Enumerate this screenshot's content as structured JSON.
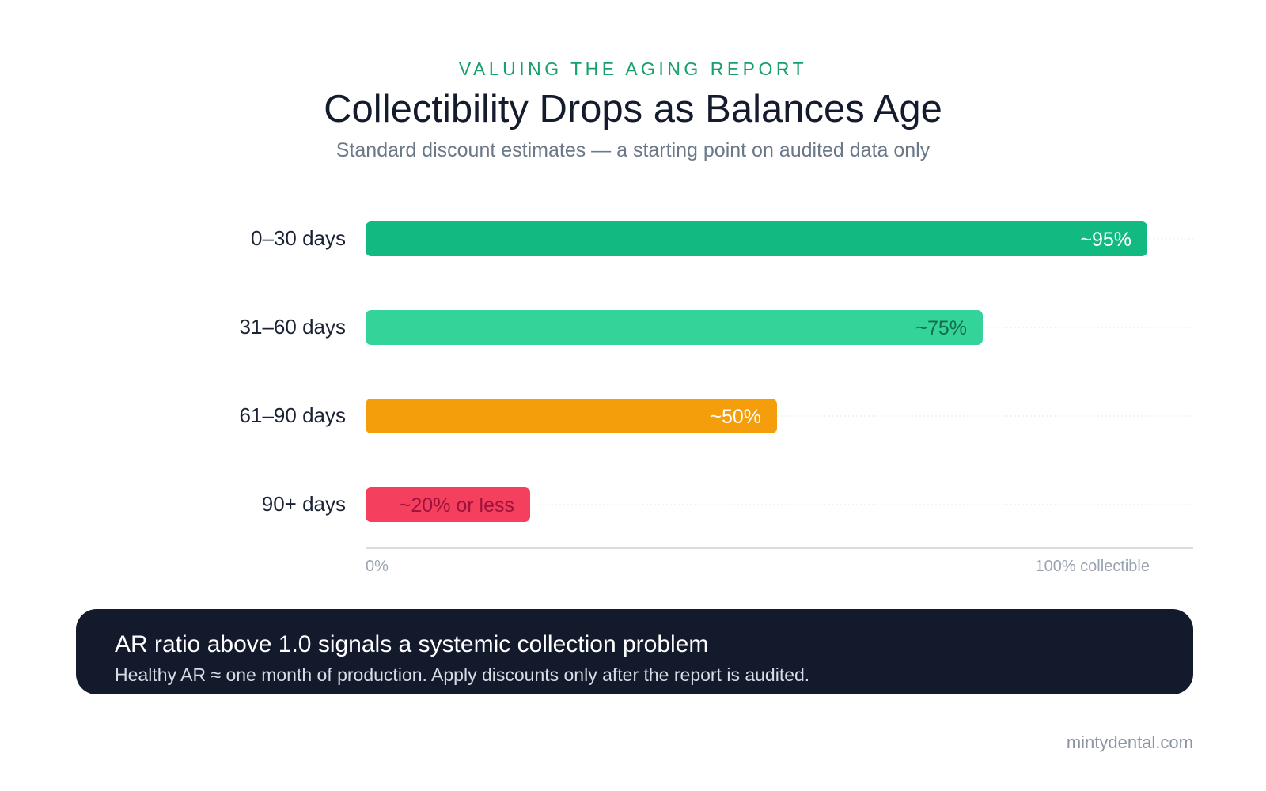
{
  "header": {
    "eyebrow": "VALUING THE AGING REPORT",
    "title": "Collectibility Drops as Balances Age",
    "subtitle": "Standard discount estimates — a starting point on audited data only"
  },
  "chart_data": {
    "type": "bar",
    "orientation": "horizontal",
    "title": "Collectibility Drops as Balances Age",
    "subtitle": "Standard discount estimates — a starting point on audited data only",
    "categories": [
      "0–30 days",
      "31–60 days",
      "61–90 days",
      "90+ days"
    ],
    "values": [
      95,
      75,
      50,
      20
    ],
    "data_labels": [
      "~95%",
      "~75%",
      "~50%",
      "~20% or less"
    ],
    "bar_colors": [
      "#12b981",
      "#34d399",
      "#f59e0b",
      "#f43f5e"
    ],
    "label_colors": [
      "#ffffff",
      "#146c4c",
      "#ffffff",
      "#9f1239"
    ],
    "xlim": [
      0,
      100
    ],
    "x_tick_labels": [
      "0%",
      "100% collectible"
    ],
    "xlabel": "",
    "ylabel": "",
    "grid": true
  },
  "callout": {
    "heading": "AR ratio above 1.0 signals a systemic collection problem",
    "body": "Healthy AR ≈ one month of production. Apply discounts only after the report is audited."
  },
  "footer": {
    "site": "mintydental.com"
  }
}
